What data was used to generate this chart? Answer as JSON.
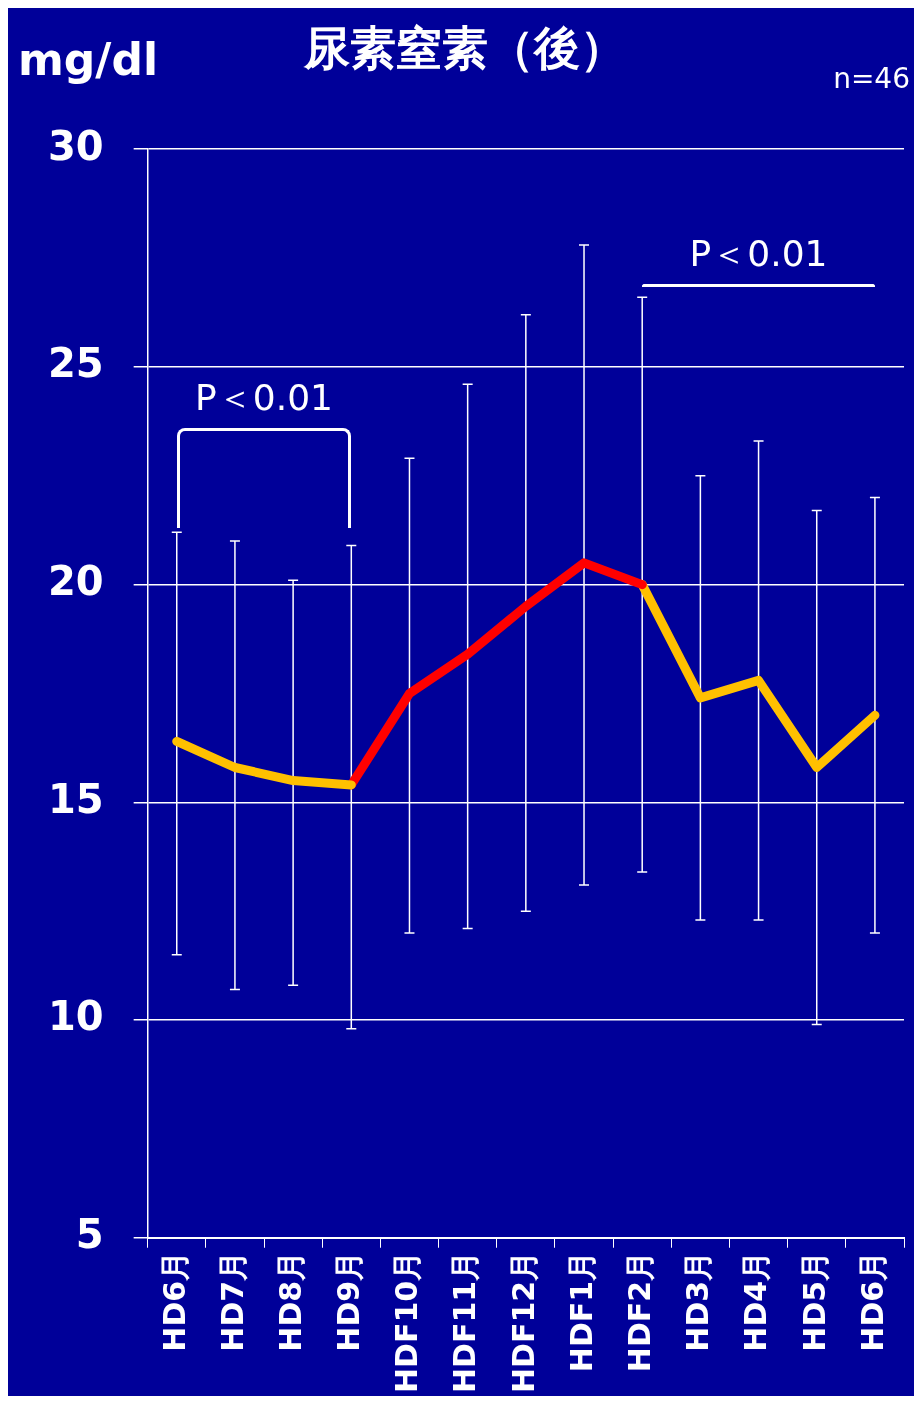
{
  "chart_data": {
    "type": "line",
    "title": "尿素窒素（後）",
    "ylabel": "mg/dl",
    "categories": [
      "HD6月",
      "HD7月",
      "HD8月",
      "HD9月",
      "HDF10月",
      "HDF11月",
      "HDF12月",
      "HDF1月",
      "HDF2月",
      "HD3月",
      "HD4月",
      "HD5月",
      "HD6月"
    ],
    "series": [
      {
        "color": "#ffc000",
        "values": [
          16.4,
          15.8,
          15.5,
          15.4,
          null,
          null,
          null,
          null,
          null,
          null,
          null,
          null,
          null
        ],
        "errors": [
          [
            11.5,
            21.2
          ],
          [
            10.7,
            21.0
          ],
          [
            10.8,
            20.1
          ],
          [
            9.8,
            20.9
          ],
          null,
          null,
          null,
          null,
          null,
          null,
          null,
          null,
          null
        ]
      },
      {
        "color": "#ff0000",
        "values": [
          null,
          null,
          null,
          15.4,
          17.5,
          18.4,
          19.5,
          20.5,
          20.0,
          null,
          null,
          null,
          null
        ],
        "errors": [
          null,
          null,
          null,
          null,
          [
            12.0,
            22.9
          ],
          [
            12.1,
            24.6
          ],
          [
            12.5,
            26.2
          ],
          [
            13.1,
            27.8
          ],
          null,
          null,
          null,
          null,
          null
        ]
      },
      {
        "color": "#ffc000",
        "values": [
          null,
          null,
          null,
          null,
          null,
          null,
          null,
          null,
          20.0,
          17.4,
          17.8,
          15.8,
          17.0
        ],
        "errors": [
          null,
          null,
          null,
          null,
          null,
          null,
          null,
          null,
          [
            13.4,
            26.6
          ],
          [
            12.3,
            22.5
          ],
          [
            12.3,
            23.3
          ],
          [
            9.9,
            21.7
          ],
          [
            12.0,
            22.0
          ]
        ]
      }
    ],
    "ylim": [
      5,
      30
    ],
    "yticks": [
      5,
      10,
      15,
      20,
      25,
      30
    ],
    "grid": "y",
    "legend": false,
    "line_style": "solid",
    "annotations": [
      "P＜0.01",
      "P＜0.01",
      "n=46"
    ]
  }
}
